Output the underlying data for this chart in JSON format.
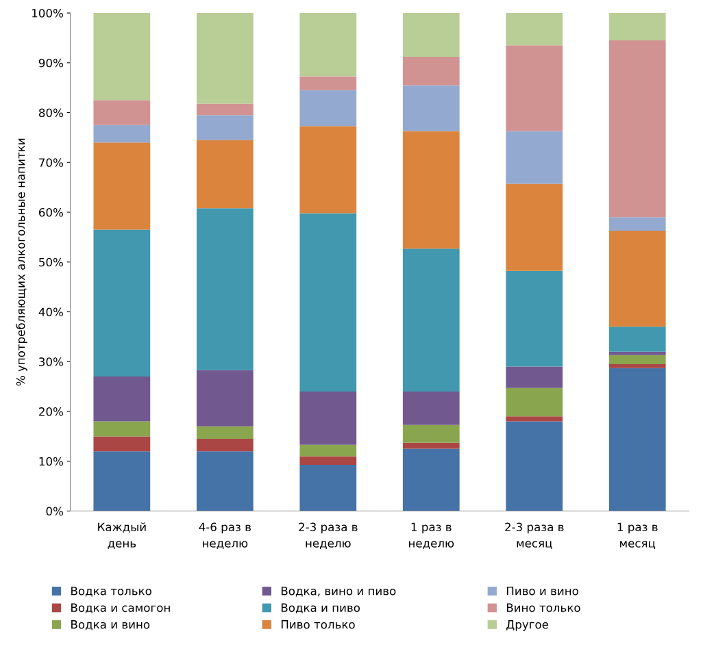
{
  "chart_data": {
    "type": "bar",
    "stacked": true,
    "ylabel": "% употребляющих алкогольные напитки",
    "categories": [
      "Каждый\nдень",
      "4-6 раз в\nнеделю",
      "2-3 раза в\nнеделю",
      "1 раз в\nнеделю",
      "2-3 раза в\nмесяц",
      "1 раз в\nмесяц"
    ],
    "series": [
      {
        "name": "Водка только",
        "color": "#4572a7",
        "values": [
          12,
          12,
          9.3,
          12.5,
          18,
          28.7
        ]
      },
      {
        "name": "Водка и самогон",
        "color": "#aa4643",
        "values": [
          3,
          2.5,
          1.7,
          1.2,
          1,
          0.8
        ]
      },
      {
        "name": "Водка и вино",
        "color": "#89a54e",
        "values": [
          3,
          2.5,
          2.3,
          3.6,
          5.7,
          1.8
        ]
      },
      {
        "name": "Водка, вино и пиво",
        "color": "#71588f",
        "values": [
          9,
          11.3,
          10.7,
          6.7,
          4.3,
          0.7
        ]
      },
      {
        "name": "Водка и пиво",
        "color": "#4198af",
        "values": [
          29.5,
          32.5,
          35.8,
          28.7,
          19.2,
          5
        ]
      },
      {
        "name": "Пиво только",
        "color": "#db843d",
        "values": [
          17.5,
          13.7,
          17.5,
          23.6,
          17.5,
          19.3
        ]
      },
      {
        "name": "Пиво и вино",
        "color": "#93a9cf",
        "values": [
          3.5,
          5,
          7.2,
          9.2,
          10.6,
          2.7
        ]
      },
      {
        "name": "Вино только",
        "color": "#d19392",
        "values": [
          5,
          2.3,
          2.8,
          5.7,
          17.2,
          35.5
        ]
      },
      {
        "name": "Другое",
        "color": "#b9cd96",
        "values": [
          17.5,
          18.2,
          12.7,
          8.8,
          6.5,
          5.5
        ]
      }
    ],
    "ylim": [
      0,
      100
    ],
    "yticks": [
      {
        "value": 0,
        "label": "0%"
      },
      {
        "value": 10,
        "label": "10%"
      },
      {
        "value": 20,
        "label": "20%"
      },
      {
        "value": 30,
        "label": "30%"
      },
      {
        "value": 40,
        "label": "40%"
      },
      {
        "value": 50,
        "label": "50%"
      },
      {
        "value": 60,
        "label": "60%"
      },
      {
        "value": 70,
        "label": "70%"
      },
      {
        "value": 80,
        "label": "80%"
      },
      {
        "value": 90,
        "label": "90%"
      },
      {
        "value": 100,
        "label": "100%"
      }
    ],
    "grid": false,
    "legend": "bottom"
  }
}
